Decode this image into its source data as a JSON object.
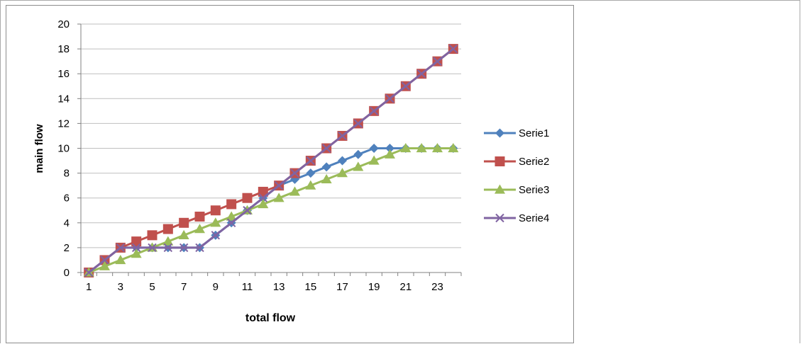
{
  "chart_data": {
    "type": "line",
    "title": "",
    "xlabel": "total flow",
    "ylabel": "main flow",
    "x": [
      1,
      2,
      3,
      4,
      5,
      6,
      7,
      8,
      9,
      10,
      11,
      12,
      13,
      14,
      15,
      16,
      17,
      18,
      19,
      20,
      21,
      22,
      23,
      24
    ],
    "x_tick_labels": [
      "1",
      "3",
      "5",
      "7",
      "9",
      "11",
      "13",
      "15",
      "17",
      "19",
      "21",
      "23"
    ],
    "y_tick_labels": [
      "0",
      "2",
      "4",
      "6",
      "8",
      "10",
      "12",
      "14",
      "16",
      "18",
      "20"
    ],
    "ylim": [
      0,
      20
    ],
    "grid": "horizontal",
    "legend_position": "right",
    "series": [
      {
        "name": "Serie1",
        "color": "#4f81bd",
        "marker": "diamond",
        "values": [
          0,
          1,
          2,
          2,
          2,
          2,
          2,
          2,
          3,
          4,
          5,
          6,
          7,
          7.5,
          8,
          8.5,
          9,
          9.5,
          10,
          10,
          10,
          10,
          10,
          10
        ]
      },
      {
        "name": "Serie2",
        "color": "#c0504d",
        "marker": "square",
        "values": [
          0,
          1,
          2,
          2.5,
          3,
          3.5,
          4,
          4.5,
          5,
          5.5,
          6,
          6.5,
          7,
          8,
          9,
          10,
          11,
          12,
          13,
          14,
          15,
          16,
          17,
          18
        ]
      },
      {
        "name": "Serie3",
        "color": "#9bbb59",
        "marker": "triangle",
        "values": [
          0,
          0.5,
          1,
          1.5,
          2,
          2.5,
          3,
          3.5,
          4,
          4.5,
          5,
          5.5,
          6,
          6.5,
          7,
          7.5,
          8,
          8.5,
          9,
          9.5,
          10,
          10,
          10,
          10
        ]
      },
      {
        "name": "Serie4",
        "color": "#8064a2",
        "marker": "x",
        "values": [
          0,
          1,
          2,
          2,
          2,
          2,
          2,
          2,
          3,
          4,
          5,
          6,
          7,
          8,
          9,
          10,
          11,
          12,
          13,
          14,
          15,
          16,
          17,
          18
        ]
      }
    ]
  }
}
